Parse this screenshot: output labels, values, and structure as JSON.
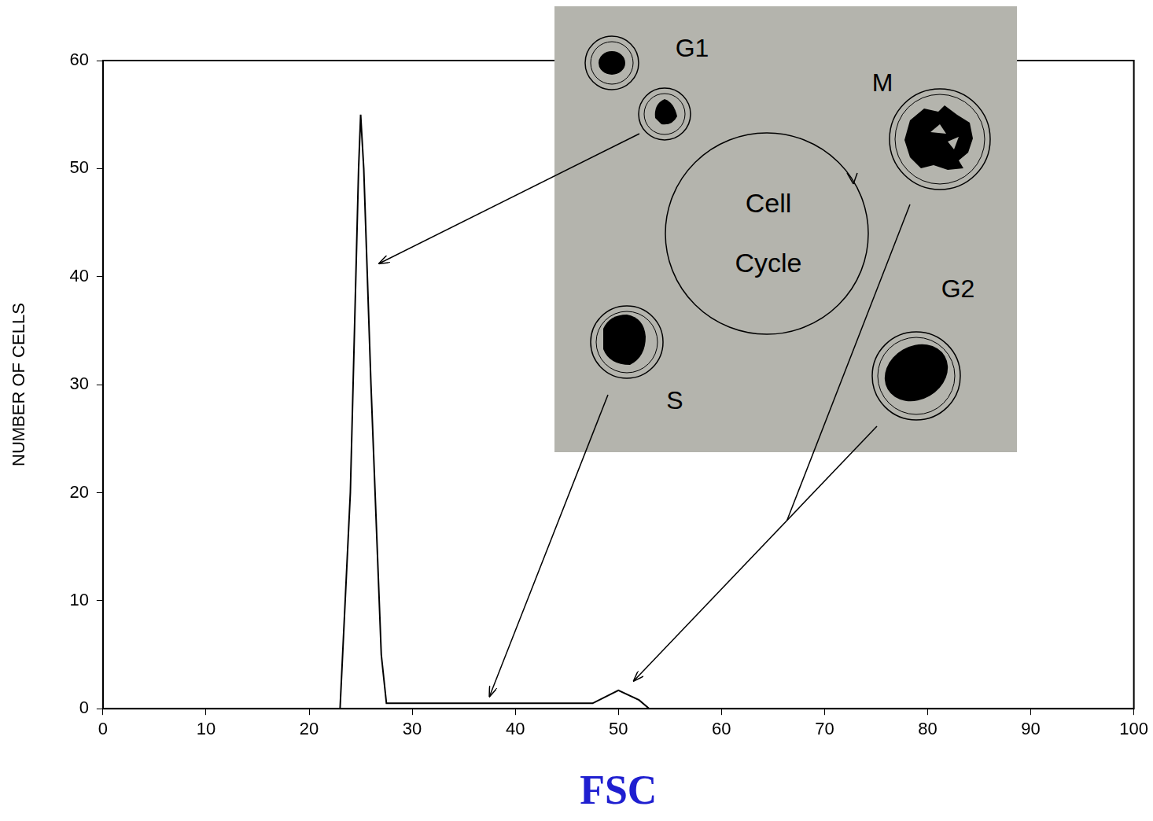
{
  "chart_data": {
    "type": "line",
    "x": [
      23,
      24,
      24.8,
      25,
      25.3,
      26,
      27,
      27.5,
      30,
      40,
      47.5,
      50,
      52,
      53
    ],
    "values": [
      0,
      20,
      50,
      55,
      50,
      30,
      5,
      0.5,
      0.5,
      0.5,
      0.5,
      1.7,
      0.8,
      0
    ],
    "color": "#000000",
    "marker": "none",
    "x_label": "FSC",
    "y_label": "NUMBER OF CELLS",
    "xlim": [
      0,
      100
    ],
    "xticks": [
      0,
      10,
      20,
      30,
      40,
      50,
      60,
      70,
      80,
      90,
      100
    ],
    "ylim": [
      0,
      60
    ],
    "yticks": [
      0,
      10,
      20,
      30,
      40,
      50,
      60
    ],
    "grid": false
  },
  "inset": {
    "title": "Cell Cycle",
    "phases": [
      "G1",
      "M",
      "G2",
      "S"
    ]
  }
}
